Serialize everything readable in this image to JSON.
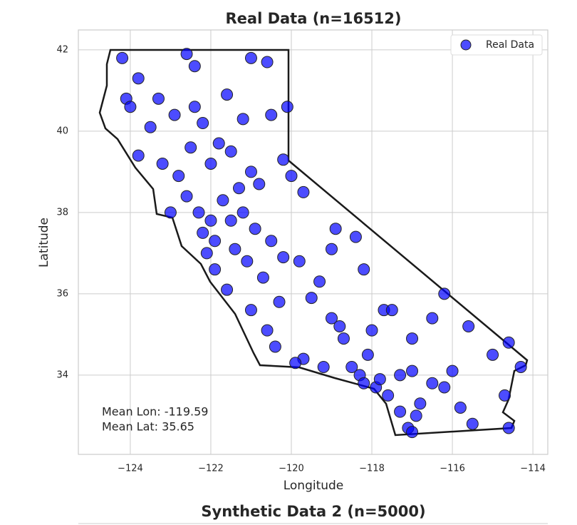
{
  "chart_data": [
    {
      "type": "scatter",
      "title": "Real Data (n=16512)",
      "x_label": "Longitude",
      "y_label": "Latitude",
      "xlim": [
        -125.29,
        -113.63
      ],
      "ylim": [
        32.05,
        42.49
      ],
      "xticks": [
        {
          "value": -124,
          "label": "−124"
        },
        {
          "value": -122,
          "label": "−122"
        },
        {
          "value": -120,
          "label": "−120"
        },
        {
          "value": -118,
          "label": "−118"
        },
        {
          "value": -116,
          "label": "−116"
        },
        {
          "value": -114,
          "label": "−114"
        }
      ],
      "yticks": [
        34,
        36,
        38,
        40,
        42
      ],
      "grid": true,
      "legend": "upper right",
      "annotations": [
        "Mean Lon: -119.59",
        "Mean Lat: 35.65"
      ],
      "series": [
        {
          "name": "Real Data",
          "color": "#0000ff",
          "x": [
            -124.2,
            -124.1,
            -123.8,
            -124.0,
            -123.3,
            -122.4,
            -122.4,
            -122.2,
            -121.6,
            -121.2,
            -120.6,
            -120.5,
            -123.8,
            -123.2,
            -122.8,
            -122.6,
            -122.3,
            -122.0,
            -122.2,
            -121.9,
            -121.5,
            -121.3,
            -121.0,
            -120.8,
            -121.5,
            -121.8,
            -122.0,
            -121.2,
            -120.9,
            -120.5,
            -120.2,
            -119.8,
            -119.3,
            -119.0,
            -118.8,
            -121.9,
            -121.6,
            -121.0,
            -120.6,
            -120.4,
            -119.7,
            -119.2,
            -118.5,
            -118.3,
            -118.2,
            -117.9,
            -117.6,
            -117.3,
            -117.1,
            -117.0,
            -116.9,
            -117.3,
            -117.0,
            -116.5,
            -116.2,
            -115.5,
            -114.6,
            -114.6,
            -114.3,
            -116.2,
            -115.6,
            -117.7,
            -118.0,
            -117.0,
            -120.2,
            -120.0,
            -119.7,
            -118.9,
            -118.4,
            -118.2,
            -122.6,
            -121.0,
            -120.1,
            -119.0,
            -117.5,
            -115.0,
            -114.7,
            -116.5,
            -122.9,
            -123.0,
            -123.5,
            -122.5,
            -121.7,
            -121.4,
            -120.7,
            -119.5,
            -118.7,
            -118.1,
            -117.8,
            -116.8,
            -116.0,
            -115.8,
            -122.1,
            -121.1,
            -120.3,
            -119.9
          ],
          "y": [
            41.8,
            40.8,
            41.3,
            40.6,
            40.8,
            41.6,
            40.6,
            40.2,
            40.9,
            40.3,
            41.7,
            40.4,
            39.4,
            39.2,
            38.9,
            38.4,
            38.0,
            37.8,
            37.5,
            37.3,
            37.8,
            38.6,
            39.0,
            38.7,
            39.5,
            39.7,
            39.2,
            38.0,
            37.6,
            37.3,
            36.9,
            36.8,
            36.3,
            35.4,
            35.2,
            36.6,
            36.1,
            35.6,
            35.1,
            34.7,
            34.4,
            34.2,
            34.2,
            34.0,
            33.8,
            33.7,
            33.5,
            33.1,
            32.7,
            32.6,
            33.0,
            34.0,
            34.1,
            33.8,
            33.7,
            32.8,
            32.7,
            34.8,
            34.2,
            36.0,
            35.2,
            35.6,
            35.1,
            34.9,
            39.3,
            38.9,
            38.5,
            37.6,
            37.4,
            36.6,
            41.9,
            41.8,
            40.6,
            37.1,
            35.6,
            34.5,
            33.5,
            35.4,
            40.4,
            38.0,
            40.1,
            39.6,
            38.3,
            37.1,
            36.4,
            35.9,
            34.9,
            34.5,
            33.9,
            33.3,
            34.1,
            33.2,
            37.0,
            36.8,
            35.8,
            34.3
          ]
        }
      ]
    },
    {
      "type": "scatter",
      "title": "Synthetic Data 2 (n=5000)"
    }
  ]
}
